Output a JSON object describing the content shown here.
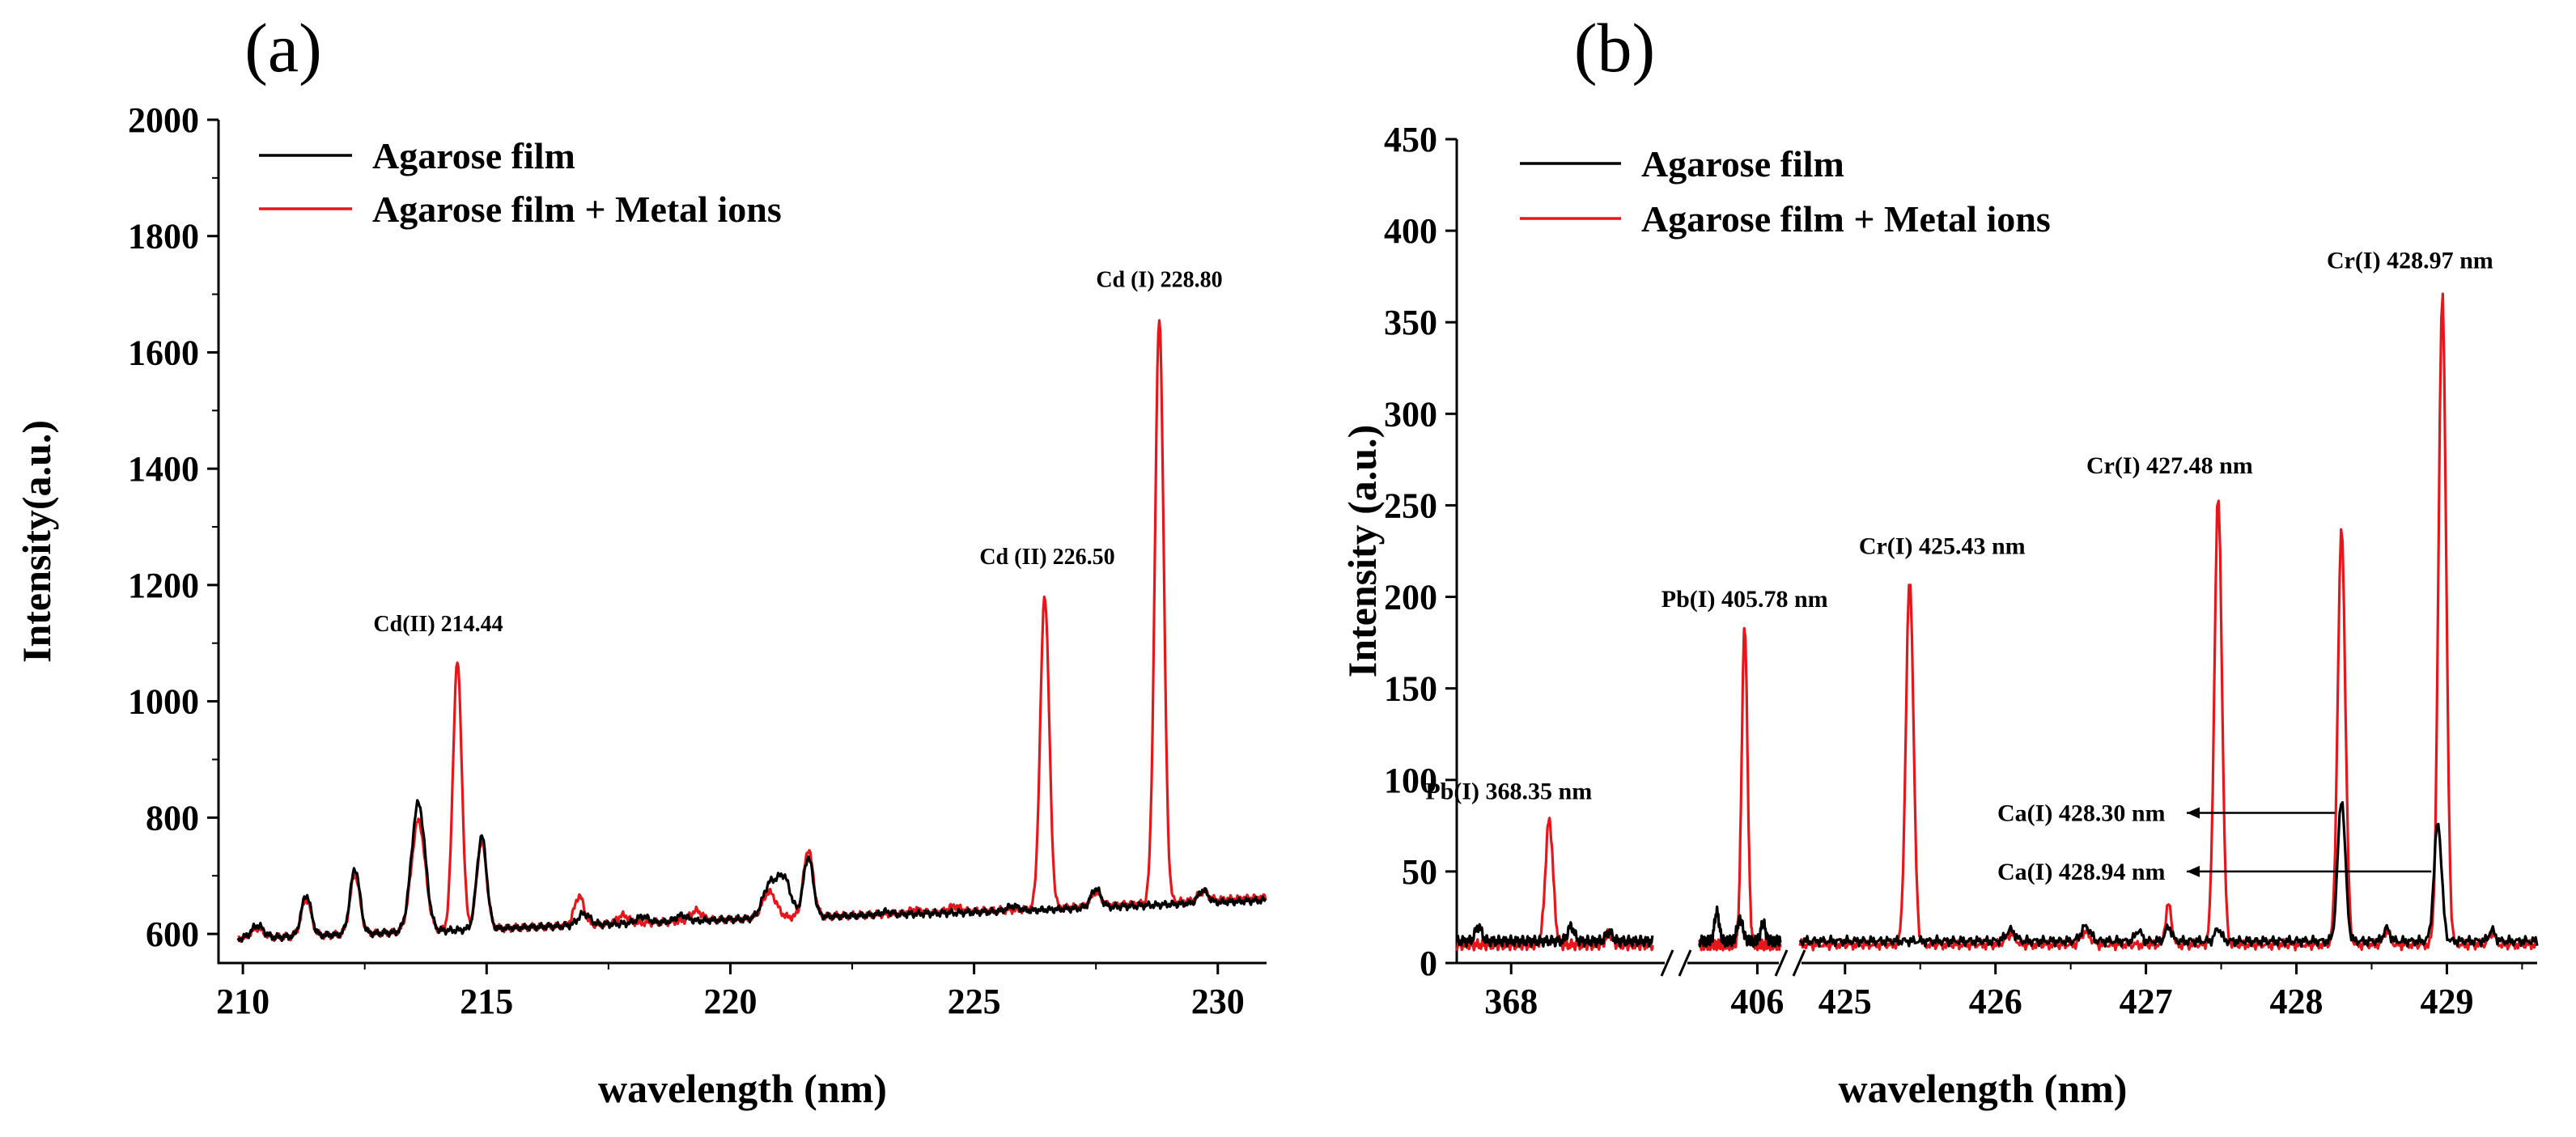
{
  "chart_data": [
    {
      "panel": "(a)",
      "type": "line",
      "xlabel": "wavelength (nm)",
      "ylabel": "Intensity(a.u.)",
      "xlim": [
        209.5,
        231
      ],
      "ylim": [
        550,
        2000
      ],
      "xticks": [
        "210",
        "215",
        "220",
        "225",
        "230"
      ],
      "yticks": [
        "600",
        "800",
        "1000",
        "1200",
        "1400",
        "1600",
        "1800",
        "2000"
      ],
      "legend": [
        "Agarose film",
        "Agarose film + Metal ions"
      ],
      "legend_position": "top-left",
      "colors": {
        "black_series": "#000000",
        "red_series": "#e8161b"
      },
      "baseline": {
        "black": [
          [
            209.9,
            592
          ],
          [
            220,
            625
          ],
          [
            226,
            640
          ],
          [
            231,
            658
          ]
        ],
        "red": [
          [
            209.9,
            592
          ],
          [
            220,
            625
          ],
          [
            226,
            642
          ],
          [
            231,
            663
          ]
        ]
      },
      "series": [
        {
          "name": "Agarose film",
          "peaks": [
            [
              210.3,
              615,
              0.12
            ],
            [
              211.3,
              667,
              0.1
            ],
            [
              212.3,
              712,
              0.1
            ],
            [
              213.6,
              825,
              0.14
            ],
            [
              214.9,
              768,
              0.1
            ],
            [
              217.0,
              635,
              0.12
            ],
            [
              218.2,
              630,
              0.12
            ],
            [
              219.0,
              632,
              0.12
            ],
            [
              220.8,
              682,
              0.14
            ],
            [
              221.1,
              695,
              0.14
            ],
            [
              221.6,
              732,
              0.1
            ],
            [
              223.2,
              638,
              0.12
            ],
            [
              225.8,
              648,
              0.12
            ],
            [
              227.5,
              678,
              0.1
            ],
            [
              229.7,
              675,
              0.1
            ]
          ]
        },
        {
          "name": "Agarose film + Metal ions",
          "peaks": [
            [
              210.3,
              610,
              0.12
            ],
            [
              211.3,
              660,
              0.1
            ],
            [
              212.3,
              702,
              0.1
            ],
            [
              213.6,
              795,
              0.14
            ],
            [
              214.4,
              1068,
              0.09
            ],
            [
              214.9,
              760,
              0.1
            ],
            [
              216.9,
              665,
              0.1
            ],
            [
              217.8,
              632,
              0.12
            ],
            [
              219.3,
              640,
              0.12
            ],
            [
              220.8,
              672,
              0.14
            ],
            [
              221.6,
              745,
              0.1
            ],
            [
              223.8,
              642,
              0.12
            ],
            [
              224.6,
              648,
              0.12
            ],
            [
              226.45,
              1183,
              0.09
            ],
            [
              227.5,
              672,
              0.1
            ],
            [
              228.8,
              1660,
              0.09
            ],
            [
              229.7,
              673,
              0.1
            ]
          ]
        }
      ],
      "annotations": [
        {
          "text": "Cd(II) 214.44",
          "x": 214.44,
          "y": 1068
        },
        {
          "text": "Cd (II) 226.50",
          "x": 226.5,
          "y": 1183
        },
        {
          "text": "Cd (I) 228.80",
          "x": 228.8,
          "y": 1660
        }
      ]
    },
    {
      "panel": "(b)",
      "type": "line",
      "xlabel": "wavelength (nm)",
      "ylabel": "Intensity (a.u.)",
      "ylim": [
        0,
        450
      ],
      "yticks": [
        "0",
        "50",
        "100",
        "150",
        "200",
        "250",
        "300",
        "350",
        "400",
        "450"
      ],
      "xticks": [
        {
          "label": "368",
          "segment": 0,
          "x": 368.0
        },
        {
          "label": "406",
          "segment": 1,
          "x": 406.0
        },
        {
          "label": "425",
          "segment": 2,
          "x": 425.0
        },
        {
          "label": "426",
          "segment": 2,
          "x": 426.0
        },
        {
          "label": "427",
          "segment": 2,
          "x": 427.0
        },
        {
          "label": "428",
          "segment": 2,
          "x": 428.0
        },
        {
          "label": "429",
          "segment": 2,
          "x": 429.0
        }
      ],
      "axis_breaks": true,
      "segments": [
        {
          "xlim": [
            367.5,
            369.3
          ]
        },
        {
          "xlim": [
            405.0,
            406.4
          ]
        },
        {
          "xlim": [
            424.7,
            429.6
          ]
        }
      ],
      "legend": [
        "Agarose film",
        "Agarose film + Metal ions"
      ],
      "legend_position": "top-left",
      "colors": {
        "black_series": "#000000",
        "red_series": "#e8161b"
      },
      "series": [
        {
          "name": "Agarose film",
          "peaks_by_segment": [
            [
              [
                367.7,
                20,
                0.03
              ],
              [
                368.55,
                20,
                0.03
              ],
              [
                368.9,
                17,
                0.03
              ]
            ],
            [
              [
                405.3,
                28,
                0.04
              ],
              [
                405.7,
                24,
                0.05
              ],
              [
                406.1,
                22,
                0.04
              ]
            ],
            [
              [
                425.4,
                12,
                0.03
              ],
              [
                426.1,
                18,
                0.03
              ],
              [
                426.6,
                20,
                0.03
              ],
              [
                426.95,
                18,
                0.02
              ],
              [
                427.15,
                20,
                0.02
              ],
              [
                427.48,
                19,
                0.02
              ],
              [
                428.3,
                90,
                0.025
              ],
              [
                428.6,
                19,
                0.02
              ],
              [
                428.94,
                77,
                0.025
              ],
              [
                429.3,
                18,
                0.02
              ]
            ]
          ],
          "baseline": 12
        },
        {
          "name": "Agarose film + Metal ions",
          "peaks_by_segment": [
            [
              [
                368.35,
                78,
                0.035
              ],
              [
                368.9,
                16,
                0.03
              ]
            ],
            [
              [
                405.78,
                183,
                0.05
              ]
            ],
            [
              [
                425.43,
                211,
                0.025
              ],
              [
                426.1,
                16,
                0.03
              ],
              [
                426.6,
                17,
                0.03
              ],
              [
                427.15,
                32,
                0.02
              ],
              [
                427.48,
                255,
                0.025
              ],
              [
                428.3,
                238,
                0.025
              ],
              [
                428.6,
                18,
                0.02
              ],
              [
                428.97,
                368,
                0.025
              ],
              [
                429.3,
                17,
                0.02
              ]
            ]
          ],
          "baseline": 10
        }
      ],
      "annotations": [
        {
          "text": "Pb(I) 368.35 nm",
          "segment": 0,
          "x": 368.35,
          "y": 78
        },
        {
          "text": "Pb(I) 405.78 nm",
          "segment": 1,
          "x": 405.78,
          "y": 183
        },
        {
          "text": "Cr(I) 425.43 nm",
          "segment": 2,
          "x": 425.43,
          "y": 211
        },
        {
          "text": "Cr(I) 427.48 nm",
          "segment": 2,
          "x": 427.48,
          "y": 255
        },
        {
          "text": "Cr(I) 428.97 nm",
          "segment": 2,
          "x": 428.97,
          "y": 368
        },
        {
          "text": "Ca(I) 428.30 nm",
          "segment": 2,
          "x": 428.3,
          "y": 90,
          "arrow": true
        },
        {
          "text": "Ca(I) 428.94 nm",
          "segment": 2,
          "x": 428.94,
          "y": 50,
          "arrow": true
        }
      ]
    }
  ]
}
